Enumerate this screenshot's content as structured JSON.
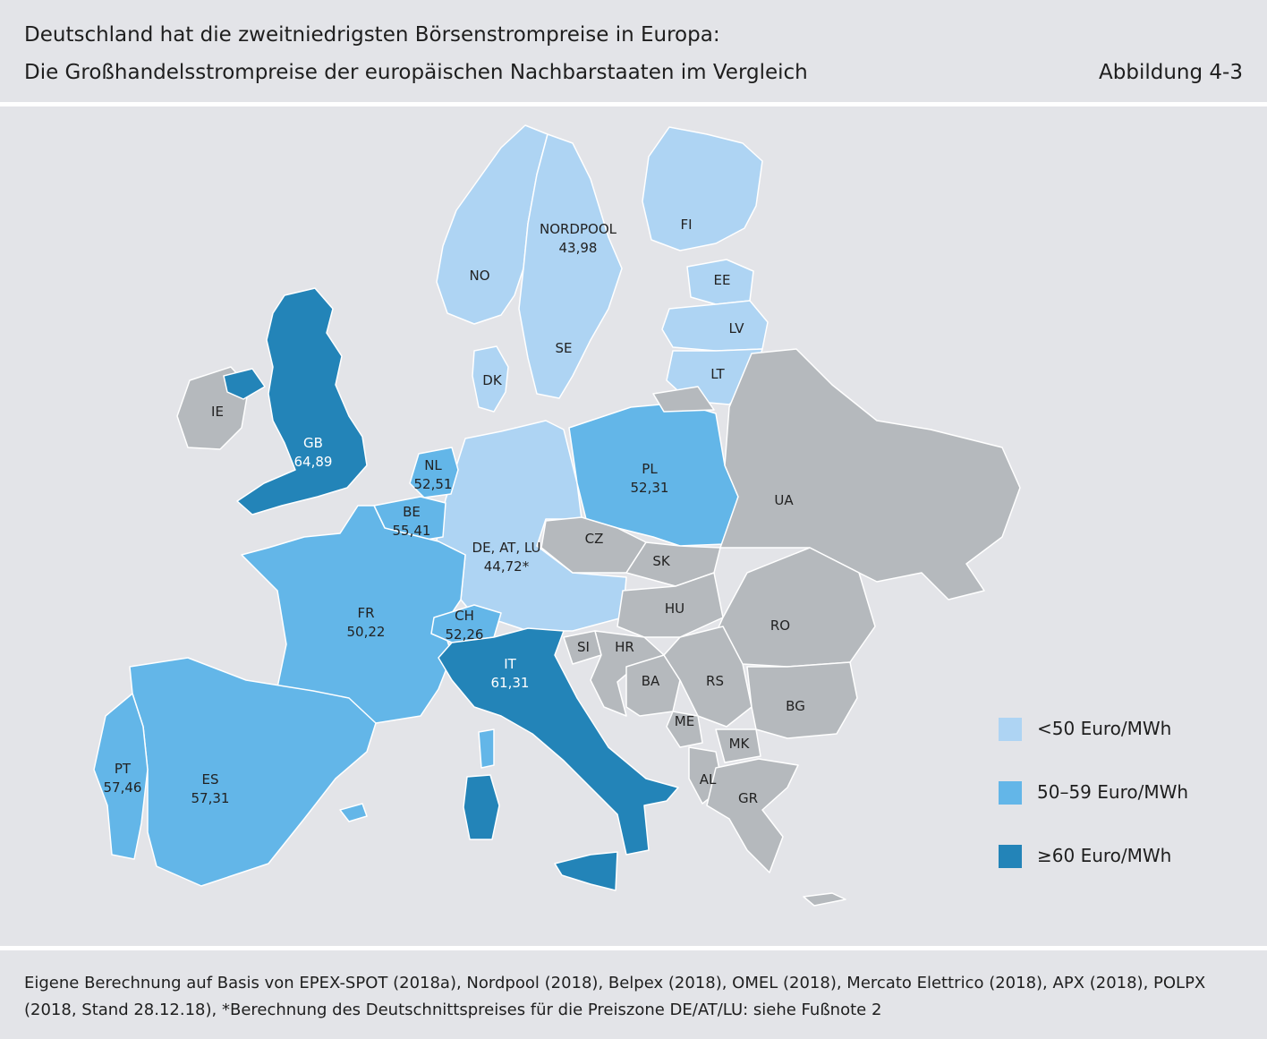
{
  "header": {
    "title": "Deutschland hat die zweitniedrigsten Börsenstrompreise in Europa:",
    "subtitle": "Die Großhandelsstrompreise der europäischen Nachbarstaaten im Vergleich",
    "figure_label": "Abbildung 4-3"
  },
  "colors": {
    "low": "#aed4f3",
    "mid": "#63b6e8",
    "high": "#2384b8",
    "none": "#b5b9bd",
    "background": "#e3e4e8"
  },
  "legend": [
    {
      "label": "<50 Euro/MWh",
      "category": "low"
    },
    {
      "label": "50–59 Euro/MWh",
      "category": "mid"
    },
    {
      "label": "≥60 Euro/MWh",
      "category": "high"
    }
  ],
  "regions": [
    {
      "code": "NORDPOOL",
      "price": "43,98",
      "category": "low"
    },
    {
      "code": "NO",
      "price": "",
      "category": "low"
    },
    {
      "code": "SE",
      "price": "",
      "category": "low"
    },
    {
      "code": "FI",
      "price": "",
      "category": "low"
    },
    {
      "code": "DK",
      "price": "",
      "category": "low"
    },
    {
      "code": "EE",
      "price": "",
      "category": "low"
    },
    {
      "code": "LV",
      "price": "",
      "category": "low"
    },
    {
      "code": "LT",
      "price": "",
      "category": "low"
    },
    {
      "code": "GB",
      "price": "64,89",
      "category": "high"
    },
    {
      "code": "IE",
      "price": "",
      "category": "none"
    },
    {
      "code": "NL",
      "price": "52,51",
      "category": "mid"
    },
    {
      "code": "BE",
      "price": "55,41",
      "category": "mid"
    },
    {
      "code": "DE, AT, LU",
      "price": "44,72*",
      "category": "low"
    },
    {
      "code": "PL",
      "price": "52,31",
      "category": "mid"
    },
    {
      "code": "FR",
      "price": "50,22",
      "category": "mid"
    },
    {
      "code": "CH",
      "price": "52,26",
      "category": "mid"
    },
    {
      "code": "IT",
      "price": "61,31",
      "category": "high"
    },
    {
      "code": "PT",
      "price": "57,46",
      "category": "mid"
    },
    {
      "code": "ES",
      "price": "57,31",
      "category": "mid"
    },
    {
      "code": "CZ",
      "price": "",
      "category": "none"
    },
    {
      "code": "SK",
      "price": "",
      "category": "none"
    },
    {
      "code": "HU",
      "price": "",
      "category": "none"
    },
    {
      "code": "UA",
      "price": "",
      "category": "none"
    },
    {
      "code": "RO",
      "price": "",
      "category": "none"
    },
    {
      "code": "SI",
      "price": "",
      "category": "none"
    },
    {
      "code": "HR",
      "price": "",
      "category": "none"
    },
    {
      "code": "BA",
      "price": "",
      "category": "none"
    },
    {
      "code": "RS",
      "price": "",
      "category": "none"
    },
    {
      "code": "BG",
      "price": "",
      "category": "none"
    },
    {
      "code": "ME",
      "price": "",
      "category": "none"
    },
    {
      "code": "MK",
      "price": "",
      "category": "none"
    },
    {
      "code": "AL",
      "price": "",
      "category": "none"
    },
    {
      "code": "GR",
      "price": "",
      "category": "none"
    }
  ],
  "footer": {
    "line1": "Eigene Berechnung auf Basis von EPEX-SPOT (2018a), Nordpool (2018), Belpex (2018), OMEL (2018), Mercato Elettrico (2018), APX (2018), POLPX",
    "line2": "(2018, Stand 28.12.18), *Berechnung des Deutschnittspreises für die Preiszone DE/AT/LU: siehe Fußnote 2"
  }
}
